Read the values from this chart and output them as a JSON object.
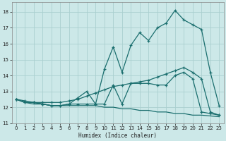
{
  "xlabel": "Humidex (Indice chaleur)",
  "background_color": "#cce8e8",
  "grid_color": "#aacfcf",
  "line_color": "#1a6e6e",
  "xlim": [
    -0.5,
    23.5
  ],
  "ylim": [
    11.0,
    18.6
  ],
  "yticks": [
    11,
    12,
    13,
    14,
    15,
    16,
    17,
    18
  ],
  "xticks": [
    0,
    1,
    2,
    3,
    4,
    5,
    6,
    7,
    8,
    9,
    10,
    11,
    12,
    13,
    14,
    15,
    16,
    17,
    18,
    19,
    20,
    21,
    22,
    23
  ],
  "line_jagged_x": [
    0,
    1,
    2,
    3,
    4,
    5,
    6,
    7,
    8,
    9,
    10,
    11,
    12,
    13,
    14,
    15,
    16,
    17,
    18,
    19,
    20,
    21,
    22,
    23
  ],
  "line_jagged_y": [
    12.5,
    12.3,
    12.3,
    12.2,
    12.1,
    12.1,
    12.2,
    12.2,
    12.2,
    12.2,
    14.4,
    15.8,
    14.2,
    15.9,
    16.7,
    16.2,
    17.0,
    17.3,
    18.1,
    17.5,
    17.2,
    16.9,
    14.2,
    12.1
  ],
  "line_smooth_x": [
    0,
    1,
    2,
    3,
    4,
    5,
    6,
    7,
    8,
    9,
    10,
    11,
    12,
    13,
    14,
    15,
    16,
    17,
    18,
    19,
    20,
    21,
    22,
    23
  ],
  "line_smooth_y": [
    12.5,
    12.4,
    12.3,
    12.3,
    12.3,
    12.3,
    12.4,
    12.5,
    12.7,
    12.9,
    13.1,
    13.3,
    13.4,
    13.5,
    13.6,
    13.7,
    13.9,
    14.1,
    14.3,
    14.5,
    14.2,
    13.8,
    11.7,
    11.5
  ],
  "line_middle_x": [
    0,
    1,
    2,
    3,
    4,
    5,
    6,
    7,
    8,
    9,
    10,
    11,
    12,
    13,
    14,
    15,
    16,
    17,
    18,
    19,
    20,
    21,
    22,
    23
  ],
  "line_middle_y": [
    12.5,
    12.3,
    12.3,
    12.2,
    12.1,
    12.1,
    12.2,
    12.6,
    13.0,
    12.2,
    12.2,
    13.4,
    12.2,
    13.5,
    13.5,
    13.5,
    13.4,
    13.4,
    14.0,
    14.2,
    13.8,
    11.7,
    11.6,
    11.5
  ],
  "line_decline_x": [
    0,
    1,
    2,
    3,
    4,
    5,
    6,
    7,
    8,
    9,
    10,
    11,
    12,
    13,
    14,
    15,
    16,
    17,
    18,
    19,
    20,
    21,
    22,
    23
  ],
  "line_decline_y": [
    12.5,
    12.3,
    12.2,
    12.2,
    12.1,
    12.1,
    12.1,
    12.1,
    12.1,
    12.1,
    12.0,
    12.0,
    11.9,
    11.9,
    11.8,
    11.8,
    11.7,
    11.7,
    11.6,
    11.6,
    11.5,
    11.5,
    11.45,
    11.4
  ]
}
